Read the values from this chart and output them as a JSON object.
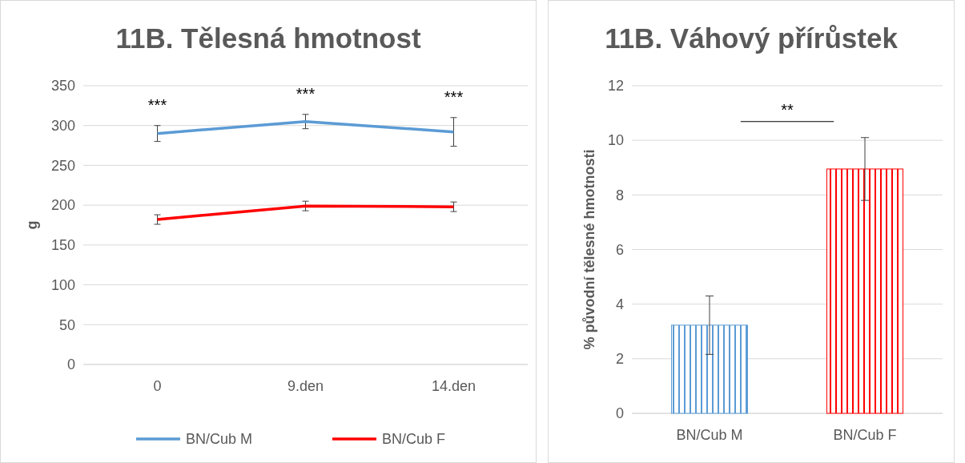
{
  "chart_data": [
    {
      "type": "line",
      "title": "11B. Tělesná hmotnost",
      "ylabel": "g",
      "categories": [
        "0",
        "9.den",
        "14.den"
      ],
      "series": [
        {
          "name": "BN/Cub M",
          "color": "#5b9bd5",
          "values": [
            290,
            305,
            292
          ],
          "errors": [
            10,
            9,
            18
          ]
        },
        {
          "name": "BN/Cub F",
          "color": "#ff0000",
          "values": [
            182,
            199,
            198
          ],
          "errors": [
            6,
            6,
            6
          ]
        }
      ],
      "ylim": [
        0,
        350
      ],
      "yticks": [
        0,
        50,
        100,
        150,
        200,
        250,
        300,
        350
      ],
      "grid": "y",
      "legend": "bottom",
      "marker": "none",
      "line_style": "solid",
      "annotations": [
        "***",
        "***",
        "***"
      ]
    },
    {
      "type": "bar",
      "title": "11B. Váhový přírůstek",
      "ylabel": "% původní tělesné hmotnosti",
      "categories": [
        "BN/Cub M",
        "BN/Cub F"
      ],
      "values": [
        3.23,
        8.95
      ],
      "errors": [
        1.07,
        1.15
      ],
      "colors": [
        "#5b9bd5",
        "#ff0000"
      ],
      "ylim": [
        0,
        12
      ],
      "yticks": [
        0,
        2,
        4,
        6,
        8,
        10,
        12
      ],
      "grid": "y",
      "annotations": [
        "**"
      ]
    }
  ]
}
